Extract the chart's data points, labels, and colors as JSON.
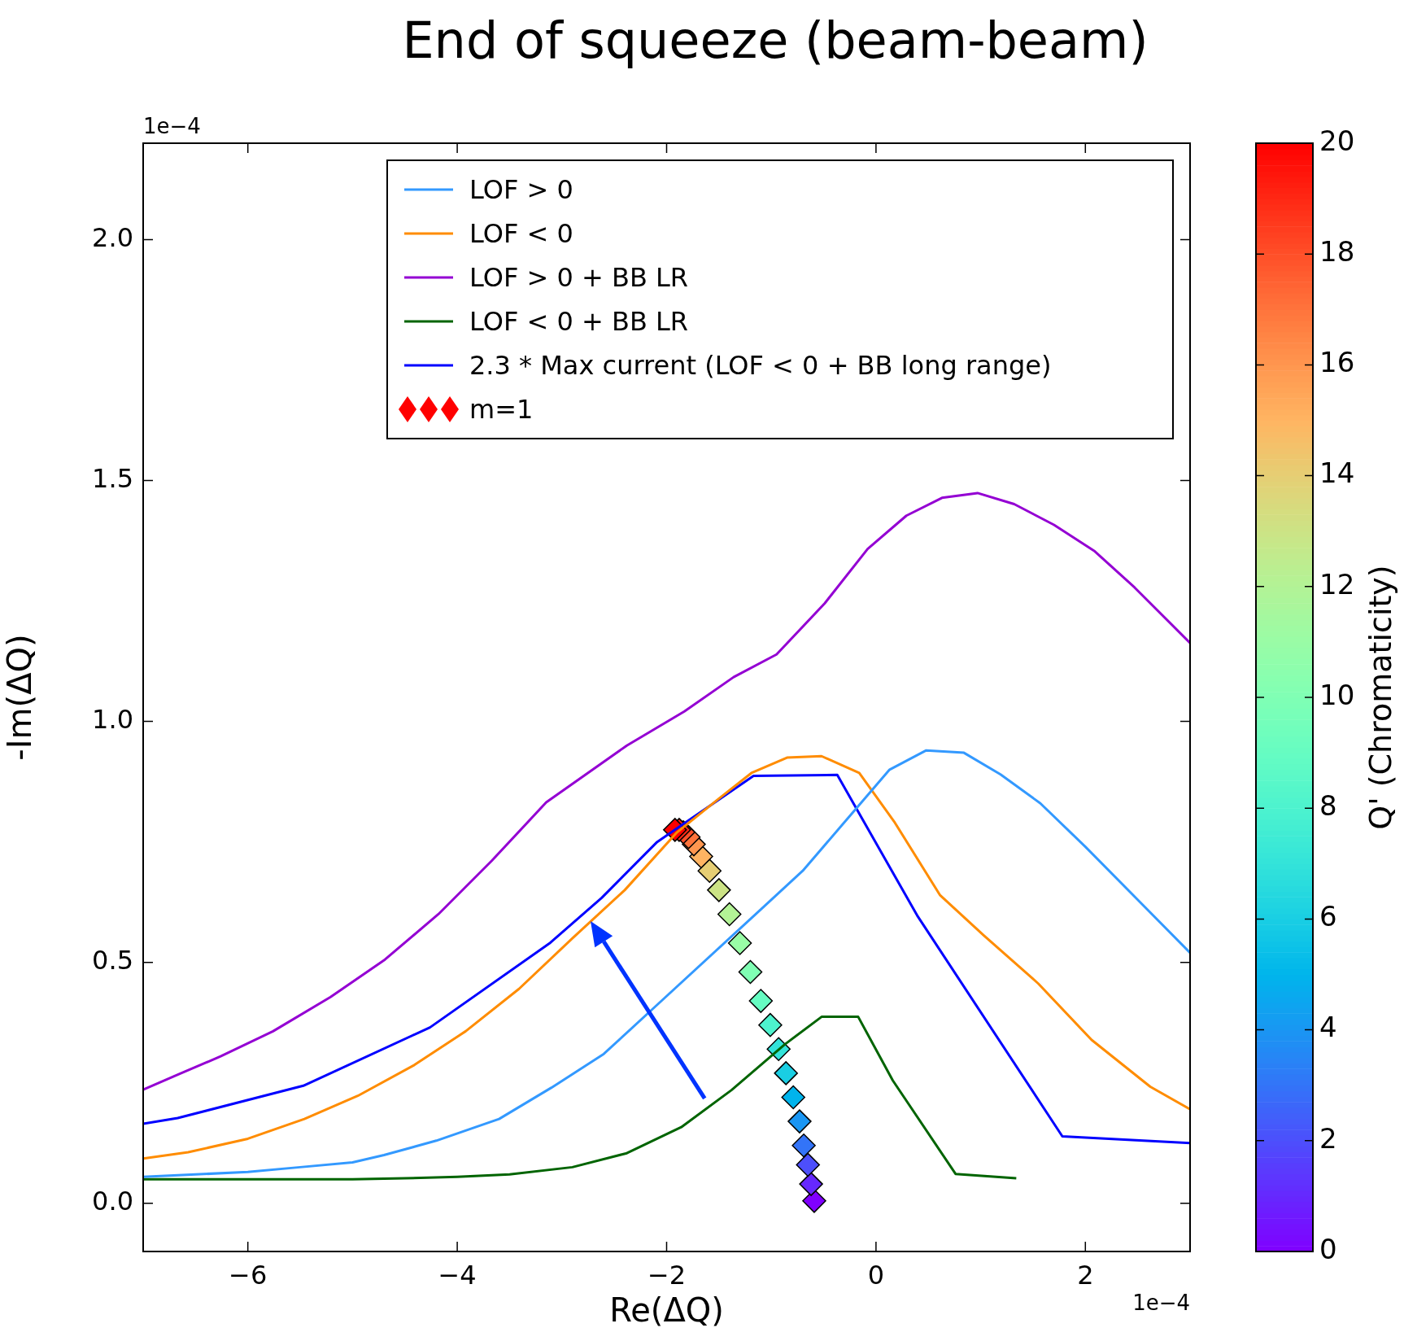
{
  "chart_data": {
    "type": "line",
    "title": "End of squeeze (beam-beam)",
    "xlabel": "Re(ΔQ)",
    "ylabel": "-Im(ΔQ)",
    "clabel": "Q' (Chromaticity)",
    "annotations": [
      "1e−4",
      "1e−4"
    ],
    "xlim": [
      -7,
      3
    ],
    "ylim": [
      -0.1,
      2.2
    ],
    "xticks": [
      {
        "value": -6,
        "label": "−6"
      },
      {
        "value": -4,
        "label": "−4"
      },
      {
        "value": -2,
        "label": "−2"
      },
      0,
      2
    ],
    "yticks": [
      {
        "value": 0,
        "label": "0.0"
      },
      {
        "value": 0.5,
        "label": "0.5"
      },
      {
        "value": 1,
        "label": "1.0"
      },
      {
        "value": 1.5,
        "label": "1.5"
      },
      {
        "value": 2,
        "label": "2.0"
      }
    ],
    "clim": [
      0,
      20
    ],
    "cticks": [
      0,
      2,
      4,
      6,
      8,
      10,
      12,
      14,
      16,
      18,
      20
    ],
    "grid": false,
    "legend": "top right",
    "marker": "none",
    "line_style": "solid",
    "series": [
      {
        "name": "LOF > 0",
        "color": "#3399ff",
        "x": [
          -7,
          -6.5,
          -6,
          -5.5,
          -5,
          -4.7,
          -4.2,
          -3.6,
          -3.1,
          -2.6,
          -2.1,
          -1.1,
          -0.7,
          0.13,
          0.48,
          0.84,
          1.19,
          1.57,
          2.0,
          2.5,
          3
        ],
        "values": [
          0.055,
          0.06,
          0.065,
          0.075,
          0.085,
          0.1,
          0.13,
          0.175,
          0.24,
          0.31,
          0.41,
          0.61,
          0.69,
          0.9,
          0.94,
          0.935,
          0.89,
          0.83,
          0.74,
          0.63,
          0.52
        ]
      },
      {
        "name": "LOF < 0",
        "color": "#ff8c00",
        "x": [
          -7,
          -6.57,
          -6,
          -5.46,
          -4.95,
          -4.41,
          -3.92,
          -3.41,
          -2.9,
          -2.4,
          -1.9,
          -1.5,
          -1.19,
          -0.85,
          -0.52,
          -0.16,
          0.18,
          0.61,
          1.03,
          1.55,
          2.06,
          2.62,
          3
        ],
        "values": [
          0.093,
          0.106,
          0.134,
          0.175,
          0.223,
          0.287,
          0.357,
          0.445,
          0.55,
          0.65,
          0.77,
          0.84,
          0.893,
          0.925,
          0.928,
          0.893,
          0.79,
          0.64,
          0.556,
          0.456,
          0.339,
          0.242,
          0.195
        ]
      },
      {
        "name": "LOF > 0 + BB LR",
        "color": "#9400d3",
        "x": [
          -7,
          -6.66,
          -6.26,
          -5.76,
          -5.21,
          -4.69,
          -4.18,
          -3.67,
          -3.15,
          -2.38,
          -1.83,
          -1.36,
          -0.95,
          -0.49,
          -0.08,
          0.29,
          0.63,
          0.97,
          1.32,
          1.7,
          2.09,
          2.47,
          3
        ],
        "values": [
          0.236,
          0.268,
          0.305,
          0.357,
          0.428,
          0.506,
          0.6,
          0.711,
          0.832,
          0.95,
          1.021,
          1.092,
          1.139,
          1.245,
          1.358,
          1.427,
          1.464,
          1.474,
          1.451,
          1.408,
          1.353,
          1.278,
          1.163
        ]
      },
      {
        "name": "LOF < 0 + BB LR",
        "color": "#006400",
        "x": [
          -7,
          -6,
          -5,
          -4.5,
          -4,
          -3.5,
          -2.9,
          -2.38,
          -1.86,
          -1.38,
          -0.87,
          -0.52,
          -0.17,
          0.16,
          0.76,
          1.34
        ],
        "values": [
          0.05,
          0.05,
          0.05,
          0.052,
          0.055,
          0.06,
          0.075,
          0.104,
          0.158,
          0.235,
          0.33,
          0.387,
          0.387,
          0.255,
          0.061,
          0.052
        ]
      },
      {
        "name": "2.3 * Max current (LOF < 0 + BB long range)",
        "color": "#0000ff",
        "x": [
          -7,
          -6.67,
          -5.47,
          -4.26,
          -3.11,
          -2.62,
          -2.09,
          -1.17,
          -0.37,
          0.4,
          1.78,
          3
        ],
        "values": [
          0.165,
          0.177,
          0.244,
          0.365,
          0.541,
          0.634,
          0.75,
          0.887,
          0.889,
          0.595,
          0.139,
          0.125
        ]
      },
      {
        "name": "m=1",
        "type": "scatter",
        "marker": "diamond",
        "colors": [
          "#8000ff",
          "#6628fe",
          "#4d4ffc",
          "#3374f8",
          "#1a96f3",
          "#00b4ec",
          "#1acee3",
          "#33e3da",
          "#4df3ce",
          "#66fcc2",
          "#80ffb4",
          "#99fca6",
          "#b3f396",
          "#cce385",
          "#e6ce74",
          "#ffb462",
          "#ff964f",
          "#ff743b",
          "#ff4f28",
          "#ff2814",
          "#ff0000"
        ],
        "x": [
          -0.59,
          -0.62,
          -0.65,
          -0.69,
          -0.73,
          -0.79,
          -0.86,
          -0.93,
          -1.01,
          -1.1,
          -1.2,
          -1.3,
          -1.4,
          -1.5,
          -1.59,
          -1.67,
          -1.74,
          -1.79,
          -1.84,
          -1.88,
          -1.92
        ],
        "values": [
          0.005,
          0.04,
          0.08,
          0.12,
          0.17,
          0.22,
          0.27,
          0.32,
          0.37,
          0.42,
          0.48,
          0.54,
          0.6,
          0.65,
          0.69,
          0.72,
          0.745,
          0.76,
          0.77,
          0.775,
          0.775
        ],
        "cvalues": [
          0,
          1,
          2,
          3,
          4,
          5,
          6,
          7,
          8,
          9,
          10,
          11,
          12,
          13,
          14,
          15,
          16,
          17,
          18,
          19,
          20
        ]
      }
    ]
  }
}
